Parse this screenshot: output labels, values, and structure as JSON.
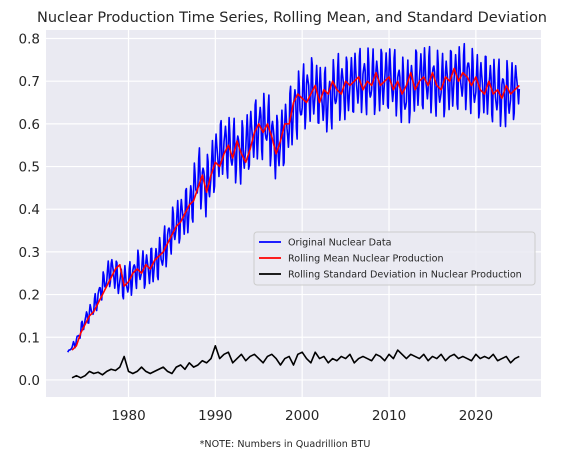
{
  "chart_data": {
    "type": "line",
    "title": "Nuclear Production Time Series, Rolling Mean, and Standard Deviation",
    "xlabel": "",
    "ylabel": "",
    "xlim": [
      1970.5,
      2027.5
    ],
    "ylim": [
      -0.04,
      0.82
    ],
    "x_ticks": [
      1980,
      1990,
      2000,
      2010,
      2020
    ],
    "y_ticks": [
      0.0,
      0.1,
      0.2,
      0.3,
      0.4,
      0.5,
      0.6,
      0.7,
      0.8
    ],
    "grid": true,
    "legend_position": "center-right",
    "note": "*NOTE: Numbers in Quadrillion BTU",
    "series": [
      {
        "name": "Original Nuclear Data",
        "color": "#0000ff",
        "x": [
          1973.0,
          1974.0,
          1975.0,
          1976.0,
          1977.0,
          1978.0,
          1979.0,
          1980.0,
          1981.0,
          1982.0,
          1983.0,
          1984.0,
          1985.0,
          1986.0,
          1987.0,
          1988.0,
          1989.0,
          1990.0,
          1991.0,
          1992.0,
          1993.0,
          1994.0,
          1995.0,
          1996.0,
          1997.0,
          1998.0,
          1999.0,
          2000.0,
          2001.0,
          2002.0,
          2003.0,
          2004.0,
          2005.0,
          2006.0,
          2007.0,
          2008.0,
          2009.0,
          2010.0,
          2011.0,
          2012.0,
          2013.0,
          2014.0,
          2015.0,
          2016.0,
          2017.0,
          2018.0,
          2019.0,
          2020.0,
          2021.0,
          2022.0,
          2023.0,
          2024.0,
          2025.0
        ],
        "y": [
          0.065,
          0.09,
          0.14,
          0.17,
          0.22,
          0.26,
          0.23,
          0.23,
          0.26,
          0.26,
          0.27,
          0.3,
          0.35,
          0.38,
          0.4,
          0.48,
          0.45,
          0.52,
          0.55,
          0.54,
          0.53,
          0.57,
          0.59,
          0.6,
          0.54,
          0.58,
          0.63,
          0.66,
          0.68,
          0.67,
          0.65,
          0.69,
          0.68,
          0.7,
          0.7,
          0.7,
          0.7,
          0.71,
          0.69,
          0.67,
          0.7,
          0.71,
          0.7,
          0.69,
          0.7,
          0.71,
          0.71,
          0.69,
          0.69,
          0.68,
          0.67,
          0.67,
          0.7
        ],
        "amplitude": [
          0.0,
          0.012,
          0.018,
          0.022,
          0.028,
          0.035,
          0.04,
          0.04,
          0.042,
          0.045,
          0.045,
          0.05,
          0.05,
          0.055,
          0.06,
          0.065,
          0.07,
          0.07,
          0.07,
          0.072,
          0.072,
          0.072,
          0.075,
          0.075,
          0.075,
          0.075,
          0.075,
          0.075,
          0.075,
          0.075,
          0.075,
          0.075,
          0.075,
          0.075,
          0.075,
          0.075,
          0.075,
          0.075,
          0.075,
          0.075,
          0.075,
          0.075,
          0.075,
          0.075,
          0.075,
          0.075,
          0.075,
          0.075,
          0.075,
          0.075,
          0.075,
          0.075,
          0.06
        ]
      },
      {
        "name": "Rolling Mean Nuclear Production",
        "color": "#ff0000",
        "x": [
          1973.5,
          1974.0,
          1974.5,
          1975.0,
          1975.5,
          1976.0,
          1976.5,
          1977.0,
          1977.5,
          1978.0,
          1978.5,
          1979.0,
          1979.5,
          1980.0,
          1980.5,
          1981.0,
          1981.5,
          1982.0,
          1982.5,
          1983.0,
          1983.5,
          1984.0,
          1984.5,
          1985.0,
          1985.5,
          1986.0,
          1986.5,
          1987.0,
          1987.5,
          1988.0,
          1988.5,
          1989.0,
          1989.5,
          1990.0,
          1990.5,
          1991.0,
          1991.5,
          1992.0,
          1992.5,
          1993.0,
          1993.5,
          1994.0,
          1994.5,
          1995.0,
          1995.5,
          1996.0,
          1996.5,
          1997.0,
          1997.5,
          1998.0,
          1998.5,
          1999.0,
          1999.5,
          2000.0,
          2000.5,
          2001.0,
          2001.5,
          2002.0,
          2002.5,
          2003.0,
          2003.5,
          2004.0,
          2004.5,
          2005.0,
          2005.5,
          2006.0,
          2006.5,
          2007.0,
          2007.5,
          2008.0,
          2008.5,
          2009.0,
          2009.5,
          2010.0,
          2010.5,
          2011.0,
          2011.5,
          2012.0,
          2012.5,
          2013.0,
          2013.5,
          2014.0,
          2014.5,
          2015.0,
          2015.5,
          2016.0,
          2016.5,
          2017.0,
          2017.5,
          2018.0,
          2018.5,
          2019.0,
          2019.5,
          2020.0,
          2020.5,
          2021.0,
          2021.5,
          2022.0,
          2022.5,
          2023.0,
          2023.5,
          2024.0,
          2024.5,
          2025.0
        ],
        "y": [
          0.07,
          0.08,
          0.11,
          0.13,
          0.15,
          0.16,
          0.18,
          0.2,
          0.22,
          0.24,
          0.26,
          0.27,
          0.22,
          0.23,
          0.25,
          0.26,
          0.25,
          0.27,
          0.26,
          0.28,
          0.29,
          0.3,
          0.32,
          0.34,
          0.36,
          0.37,
          0.39,
          0.41,
          0.42,
          0.45,
          0.48,
          0.44,
          0.48,
          0.51,
          0.5,
          0.53,
          0.55,
          0.52,
          0.56,
          0.53,
          0.51,
          0.54,
          0.58,
          0.6,
          0.58,
          0.6,
          0.57,
          0.53,
          0.56,
          0.6,
          0.6,
          0.65,
          0.67,
          0.66,
          0.65,
          0.67,
          0.69,
          0.65,
          0.68,
          0.67,
          0.7,
          0.68,
          0.67,
          0.7,
          0.69,
          0.7,
          0.71,
          0.68,
          0.7,
          0.69,
          0.72,
          0.69,
          0.7,
          0.71,
          0.68,
          0.7,
          0.67,
          0.69,
          0.72,
          0.68,
          0.7,
          0.71,
          0.69,
          0.72,
          0.69,
          0.68,
          0.71,
          0.7,
          0.73,
          0.7,
          0.72,
          0.71,
          0.69,
          0.71,
          0.68,
          0.67,
          0.7,
          0.67,
          0.68,
          0.66,
          0.69,
          0.67,
          0.68,
          0.69
        ]
      },
      {
        "name": "Rolling Standard Deviation in Nuclear Production",
        "color": "#000000",
        "x": [
          1973.5,
          1974.0,
          1974.5,
          1975.0,
          1975.5,
          1976.0,
          1976.5,
          1977.0,
          1977.5,
          1978.0,
          1978.5,
          1979.0,
          1979.5,
          1980.0,
          1980.5,
          1981.0,
          1981.5,
          1982.0,
          1982.5,
          1983.0,
          1983.5,
          1984.0,
          1984.5,
          1985.0,
          1985.5,
          1986.0,
          1986.5,
          1987.0,
          1987.5,
          1988.0,
          1988.5,
          1989.0,
          1989.5,
          1990.0,
          1990.5,
          1991.0,
          1991.5,
          1992.0,
          1992.5,
          1993.0,
          1993.5,
          1994.0,
          1994.5,
          1995.0,
          1995.5,
          1996.0,
          1996.5,
          1997.0,
          1997.5,
          1998.0,
          1998.5,
          1999.0,
          1999.5,
          2000.0,
          2000.5,
          2001.0,
          2001.5,
          2002.0,
          2002.5,
          2003.0,
          2003.5,
          2004.0,
          2004.5,
          2005.0,
          2005.5,
          2006.0,
          2006.5,
          2007.0,
          2007.5,
          2008.0,
          2008.5,
          2009.0,
          2009.5,
          2010.0,
          2010.5,
          2011.0,
          2011.5,
          2012.0,
          2012.5,
          2013.0,
          2013.5,
          2014.0,
          2014.5,
          2015.0,
          2015.5,
          2016.0,
          2016.5,
          2017.0,
          2017.5,
          2018.0,
          2018.5,
          2019.0,
          2019.5,
          2020.0,
          2020.5,
          2021.0,
          2021.5,
          2022.0,
          2022.5,
          2023.0,
          2023.5,
          2024.0,
          2024.5,
          2025.0
        ],
        "y": [
          0.005,
          0.01,
          0.005,
          0.01,
          0.02,
          0.015,
          0.018,
          0.012,
          0.02,
          0.025,
          0.022,
          0.03,
          0.055,
          0.02,
          0.015,
          0.02,
          0.03,
          0.02,
          0.015,
          0.02,
          0.025,
          0.03,
          0.02,
          0.015,
          0.03,
          0.035,
          0.025,
          0.04,
          0.03,
          0.035,
          0.045,
          0.04,
          0.05,
          0.08,
          0.05,
          0.06,
          0.065,
          0.04,
          0.05,
          0.06,
          0.045,
          0.055,
          0.06,
          0.05,
          0.04,
          0.055,
          0.06,
          0.05,
          0.035,
          0.05,
          0.055,
          0.035,
          0.06,
          0.065,
          0.05,
          0.04,
          0.065,
          0.05,
          0.055,
          0.04,
          0.05,
          0.045,
          0.055,
          0.05,
          0.06,
          0.04,
          0.05,
          0.055,
          0.05,
          0.045,
          0.06,
          0.055,
          0.045,
          0.06,
          0.05,
          0.07,
          0.06,
          0.05,
          0.06,
          0.055,
          0.05,
          0.06,
          0.045,
          0.055,
          0.05,
          0.06,
          0.045,
          0.055,
          0.06,
          0.05,
          0.055,
          0.05,
          0.045,
          0.06,
          0.05,
          0.055,
          0.05,
          0.06,
          0.045,
          0.05,
          0.055,
          0.04,
          0.05,
          0.055
        ]
      }
    ]
  },
  "colors": {
    "axes_background": "#eaeaf2",
    "grid": "#ffffff",
    "text": "#262626",
    "legend_border": "#cccccc"
  }
}
